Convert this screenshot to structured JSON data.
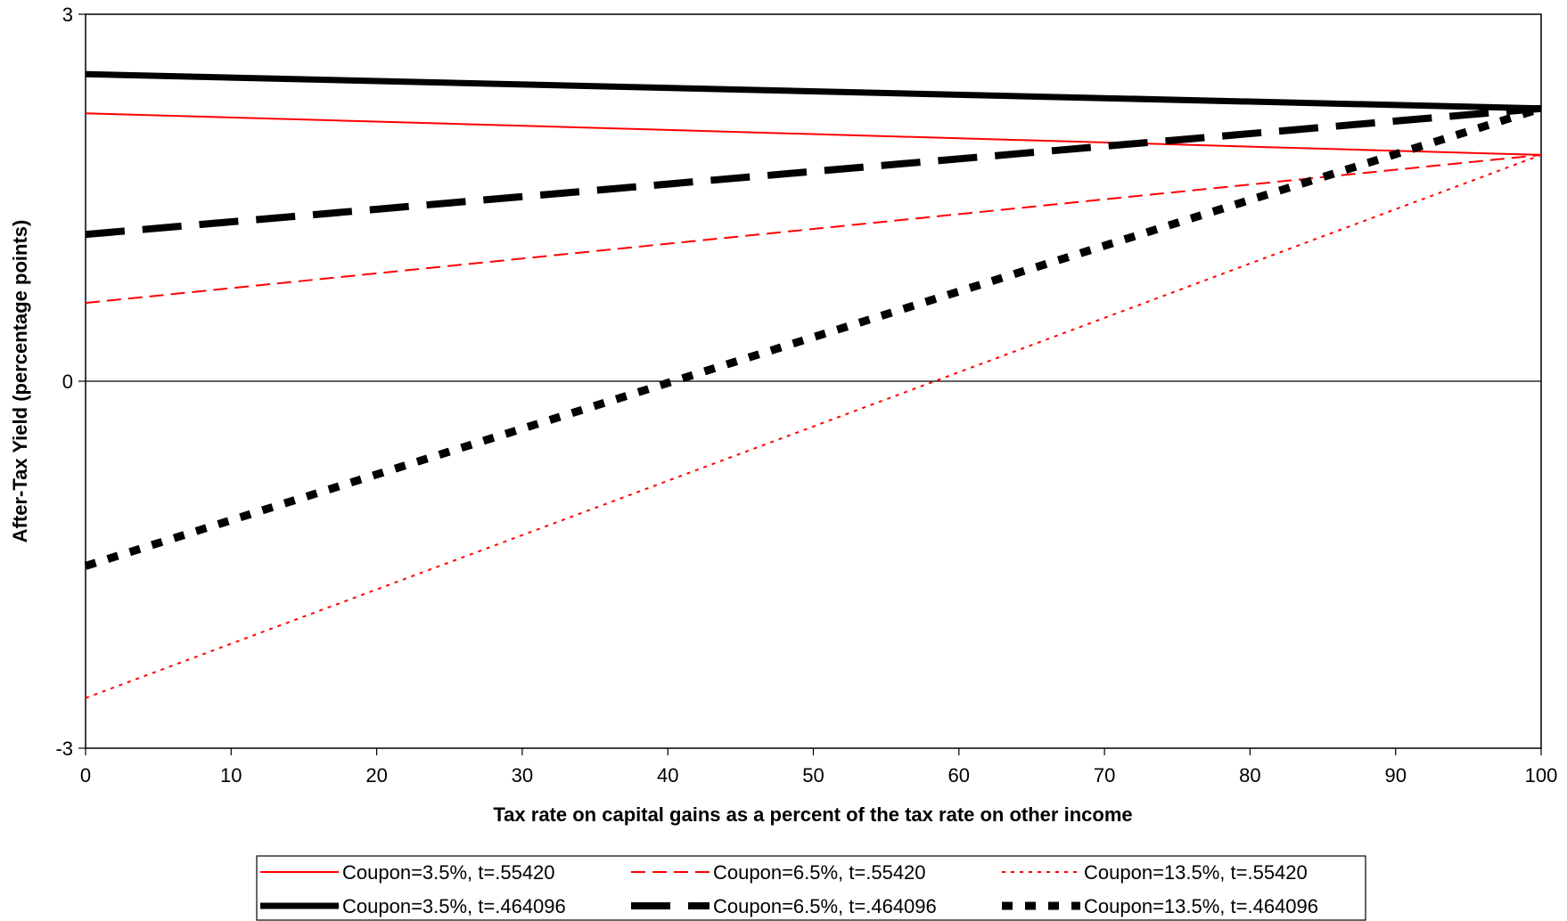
{
  "chart_data": {
    "type": "line",
    "title": "",
    "xlabel": "Tax rate on capital gains as a percent of the tax rate on other income",
    "ylabel": "After-Tax Yield (percentage points)",
    "xlim": [
      0,
      100
    ],
    "ylim": [
      -3,
      3
    ],
    "x_ticks": [
      0,
      10,
      20,
      30,
      40,
      50,
      60,
      70,
      80,
      90,
      100
    ],
    "y_ticks": [
      -3,
      0,
      3
    ],
    "grid": false,
    "legend_position": "bottom",
    "x": [
      0,
      100
    ],
    "series": [
      {
        "name": "Coupon=3.5%, t=.55420",
        "color": "#ff0000",
        "style": "solid",
        "values": [
          2.19,
          1.85
        ]
      },
      {
        "name": "Coupon=6.5%, t=.55420",
        "color": "#ff0000",
        "style": "dashed",
        "values": [
          0.64,
          1.85
        ]
      },
      {
        "name": "Coupon=13.5%, t=.55420",
        "color": "#ff0000",
        "style": "dotted",
        "values": [
          -2.59,
          1.85
        ]
      },
      {
        "name": "Coupon=3.5%, t=.464096",
        "color": "#000000",
        "style": "solid",
        "values": [
          2.51,
          2.23
        ]
      },
      {
        "name": "Coupon=6.5%, t=.464096",
        "color": "#000000",
        "style": "dashed",
        "values": [
          1.2,
          2.23
        ]
      },
      {
        "name": "Coupon=13.5%, t=.464096",
        "color": "#000000",
        "style": "dashed-short",
        "values": [
          -1.51,
          2.23
        ]
      }
    ]
  }
}
